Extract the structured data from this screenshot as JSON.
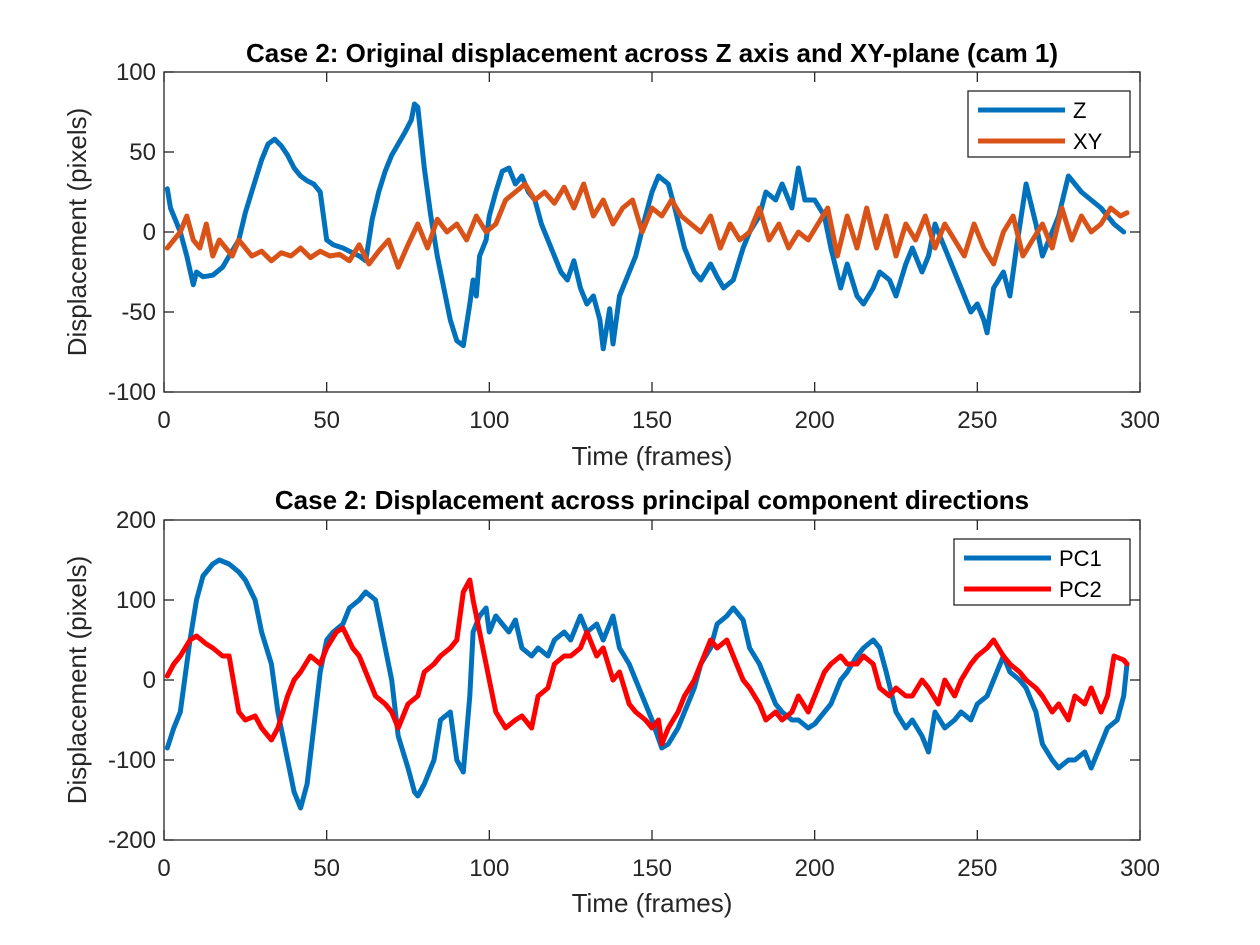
{
  "chart_data": [
    {
      "type": "line",
      "title": "Case 2: Original displacement across Z axis and XY-plane (cam 1)",
      "xlabel": "Time (frames)",
      "ylabel": "Displacement (pixels)",
      "xlim": [
        0,
        300
      ],
      "ylim": [
        -100,
        100
      ],
      "xticks": [
        "0",
        "50",
        "100",
        "150",
        "200",
        "250",
        "300"
      ],
      "yticks": [
        "-100",
        "-50",
        "0",
        "50",
        "100"
      ],
      "grid": false,
      "legend_position": "top-right",
      "series": [
        {
          "name": "Z",
          "color": "#0072BD",
          "x": [
            1,
            2,
            3,
            5,
            7,
            9,
            10,
            12,
            15,
            18,
            20,
            23,
            25,
            28,
            30,
            32,
            34,
            36,
            38,
            40,
            42,
            44,
            46,
            48,
            50,
            52,
            55,
            57,
            60,
            62,
            64,
            66,
            68,
            70,
            72,
            74,
            76,
            77,
            78,
            80,
            82,
            84,
            86,
            88,
            90,
            92,
            94,
            95,
            96,
            97,
            99,
            100,
            102,
            104,
            106,
            108,
            110,
            112,
            114,
            116,
            118,
            120,
            122,
            124,
            126,
            128,
            130,
            132,
            134,
            135,
            137,
            138,
            140,
            142,
            145,
            148,
            150,
            152,
            155,
            157,
            160,
            163,
            165,
            168,
            170,
            172,
            175,
            178,
            180,
            183,
            185,
            188,
            190,
            193,
            195,
            197,
            200,
            203,
            205,
            208,
            210,
            213,
            215,
            218,
            220,
            223,
            225,
            228,
            230,
            233,
            235,
            237,
            240,
            242,
            245,
            248,
            250,
            252,
            253,
            255,
            258,
            260,
            262,
            265,
            268,
            270,
            273,
            275,
            278,
            280,
            282,
            285,
            288,
            290,
            292,
            295
          ],
          "y": [
            27,
            15,
            10,
            0,
            -15,
            -33,
            -25,
            -28,
            -27,
            -22,
            -15,
            -5,
            12,
            32,
            45,
            55,
            58,
            54,
            48,
            40,
            35,
            32,
            30,
            25,
            -5,
            -8,
            -10,
            -12,
            -15,
            -18,
            8,
            25,
            38,
            48,
            55,
            62,
            70,
            80,
            78,
            40,
            10,
            -15,
            -35,
            -55,
            -68,
            -71,
            -45,
            -30,
            -40,
            -15,
            -5,
            10,
            25,
            38,
            40,
            30,
            35,
            25,
            20,
            5,
            -5,
            -15,
            -25,
            -30,
            -18,
            -35,
            -45,
            -40,
            -55,
            -73,
            -48,
            -70,
            -40,
            -30,
            -15,
            10,
            25,
            35,
            30,
            15,
            -10,
            -25,
            -30,
            -20,
            -28,
            -35,
            -30,
            -10,
            0,
            10,
            25,
            20,
            30,
            15,
            40,
            20,
            20,
            10,
            -10,
            -35,
            -20,
            -40,
            -45,
            -35,
            -25,
            -30,
            -40,
            -20,
            -10,
            -25,
            -15,
            5,
            -10,
            -20,
            -35,
            -50,
            -45,
            -55,
            -63,
            -35,
            -25,
            -40,
            -10,
            30,
            5,
            -15,
            0,
            10,
            35,
            30,
            25,
            20,
            15,
            10,
            5,
            0
          ]
        },
        {
          "name": "XY",
          "color": "#D95319",
          "x": [
            1,
            3,
            5,
            7,
            9,
            11,
            13,
            15,
            17,
            19,
            21,
            23,
            25,
            27,
            30,
            33,
            36,
            39,
            42,
            45,
            48,
            51,
            54,
            57,
            60,
            63,
            66,
            69,
            72,
            75,
            78,
            81,
            84,
            87,
            90,
            93,
            96,
            99,
            102,
            105,
            108,
            111,
            114,
            117,
            120,
            123,
            126,
            129,
            132,
            135,
            138,
            141,
            144,
            147,
            150,
            153,
            156,
            159,
            162,
            165,
            168,
            171,
            174,
            177,
            180,
            183,
            186,
            189,
            192,
            195,
            198,
            201,
            204,
            207,
            210,
            213,
            216,
            219,
            222,
            225,
            228,
            231,
            234,
            237,
            240,
            243,
            246,
            249,
            252,
            255,
            258,
            261,
            264,
            267,
            270,
            273,
            276,
            279,
            282,
            285,
            288,
            291,
            294,
            296
          ],
          "y": [
            -10,
            -5,
            0,
            10,
            -5,
            -10,
            5,
            -15,
            -5,
            -10,
            -15,
            -5,
            -10,
            -15,
            -12,
            -18,
            -13,
            -15,
            -10,
            -16,
            -12,
            -15,
            -14,
            -18,
            -8,
            -20,
            -12,
            -5,
            -22,
            -8,
            5,
            -10,
            8,
            0,
            5,
            -5,
            10,
            0,
            5,
            20,
            25,
            30,
            20,
            25,
            18,
            28,
            15,
            30,
            10,
            20,
            5,
            15,
            20,
            0,
            15,
            10,
            20,
            10,
            5,
            0,
            10,
            -10,
            5,
            -5,
            0,
            15,
            -5,
            5,
            -10,
            0,
            -5,
            5,
            15,
            -15,
            10,
            -10,
            15,
            -10,
            10,
            -15,
            5,
            -5,
            10,
            -10,
            5,
            -5,
            -15,
            5,
            -10,
            -20,
            0,
            10,
            -15,
            -5,
            5,
            -10,
            15,
            -5,
            10,
            0,
            5,
            15,
            10,
            12
          ]
        }
      ]
    },
    {
      "type": "line",
      "title": "Case 2: Displacement across principal component directions",
      "xlabel": "Time (frames)",
      "ylabel": "Displacement (pixels)",
      "xlim": [
        0,
        300
      ],
      "ylim": [
        -200,
        200
      ],
      "xticks": [
        "0",
        "50",
        "100",
        "150",
        "200",
        "250",
        "300"
      ],
      "yticks": [
        "-200",
        "-100",
        "0",
        "100",
        "200"
      ],
      "grid": false,
      "legend_position": "top-right",
      "series": [
        {
          "name": "PC1",
          "color": "#0072BD",
          "x": [
            1,
            3,
            5,
            8,
            10,
            12,
            15,
            17,
            20,
            23,
            25,
            28,
            30,
            33,
            35,
            38,
            40,
            42,
            44,
            46,
            48,
            50,
            52,
            55,
            57,
            60,
            62,
            65,
            67,
            70,
            72,
            75,
            77,
            78,
            80,
            83,
            85,
            88,
            90,
            92,
            94,
            95,
            97,
            99,
            100,
            102,
            104,
            106,
            108,
            110,
            113,
            115,
            118,
            120,
            123,
            125,
            128,
            130,
            133,
            135,
            138,
            140,
            143,
            145,
            148,
            150,
            153,
            155,
            158,
            160,
            163,
            165,
            168,
            170,
            173,
            175,
            178,
            180,
            183,
            185,
            188,
            190,
            193,
            195,
            198,
            200,
            203,
            205,
            208,
            210,
            213,
            215,
            218,
            220,
            222,
            225,
            228,
            230,
            233,
            235,
            237,
            240,
            243,
            245,
            248,
            250,
            253,
            255,
            258,
            260,
            263,
            265,
            268,
            270,
            273,
            275,
            278,
            280,
            283,
            285,
            288,
            290,
            293,
            295,
            296
          ],
          "y": [
            -85,
            -60,
            -40,
            50,
            100,
            130,
            145,
            150,
            145,
            135,
            125,
            100,
            60,
            20,
            -40,
            -100,
            -140,
            -160,
            -130,
            -60,
            10,
            50,
            60,
            70,
            90,
            100,
            110,
            100,
            60,
            0,
            -70,
            -110,
            -140,
            -145,
            -130,
            -100,
            -50,
            -40,
            -100,
            -115,
            -20,
            60,
            80,
            90,
            60,
            80,
            70,
            60,
            75,
            40,
            30,
            40,
            30,
            50,
            60,
            50,
            80,
            60,
            70,
            50,
            80,
            40,
            20,
            0,
            -30,
            -50,
            -85,
            -80,
            -60,
            -40,
            -10,
            20,
            40,
            70,
            80,
            90,
            75,
            40,
            20,
            0,
            -30,
            -40,
            -50,
            -50,
            -60,
            -55,
            -40,
            -30,
            0,
            10,
            30,
            40,
            50,
            40,
            10,
            -40,
            -60,
            -50,
            -70,
            -90,
            -40,
            -60,
            -50,
            -40,
            -50,
            -30,
            -20,
            0,
            30,
            10,
            0,
            -10,
            -40,
            -80,
            -100,
            -110,
            -100,
            -100,
            -90,
            -110,
            -80,
            -60,
            -50,
            -20,
            20
          ]
        },
        {
          "name": "PC2",
          "color": "#FF0000",
          "x": [
            1,
            3,
            5,
            8,
            10,
            13,
            15,
            18,
            20,
            23,
            25,
            28,
            30,
            33,
            35,
            38,
            40,
            42,
            45,
            48,
            50,
            53,
            55,
            58,
            60,
            63,
            65,
            68,
            70,
            72,
            75,
            78,
            80,
            83,
            85,
            88,
            90,
            92,
            94,
            95,
            97,
            100,
            102,
            105,
            108,
            110,
            113,
            115,
            118,
            120,
            123,
            125,
            128,
            130,
            133,
            135,
            138,
            140,
            143,
            145,
            148,
            150,
            152,
            153,
            155,
            158,
            160,
            163,
            165,
            168,
            170,
            173,
            175,
            178,
            180,
            183,
            185,
            188,
            190,
            193,
            195,
            198,
            200,
            203,
            205,
            208,
            210,
            213,
            215,
            218,
            220,
            223,
            225,
            228,
            230,
            233,
            235,
            238,
            240,
            243,
            245,
            248,
            250,
            253,
            255,
            258,
            260,
            263,
            265,
            268,
            270,
            273,
            275,
            278,
            280,
            283,
            285,
            288,
            290,
            292,
            295,
            296
          ],
          "y": [
            5,
            20,
            30,
            50,
            55,
            45,
            40,
            30,
            30,
            -40,
            -50,
            -45,
            -60,
            -75,
            -60,
            -20,
            0,
            10,
            30,
            20,
            40,
            60,
            65,
            40,
            30,
            0,
            -20,
            -30,
            -40,
            -60,
            -30,
            -20,
            10,
            20,
            30,
            40,
            50,
            110,
            125,
            100,
            60,
            0,
            -40,
            -60,
            -50,
            -45,
            -60,
            -20,
            -10,
            20,
            30,
            30,
            40,
            60,
            30,
            40,
            0,
            10,
            -30,
            -40,
            -50,
            -60,
            -50,
            -80,
            -60,
            -40,
            -20,
            0,
            20,
            50,
            40,
            50,
            30,
            0,
            -10,
            -30,
            -50,
            -40,
            -50,
            -40,
            -20,
            -40,
            -20,
            10,
            20,
            30,
            20,
            20,
            30,
            20,
            -10,
            -20,
            -10,
            -20,
            -20,
            0,
            -10,
            -30,
            0,
            -20,
            0,
            20,
            30,
            40,
            50,
            30,
            20,
            10,
            0,
            -10,
            -20,
            -40,
            -30,
            -50,
            -20,
            -30,
            -10,
            -40,
            -20,
            30,
            25,
            20
          ]
        }
      ]
    }
  ]
}
